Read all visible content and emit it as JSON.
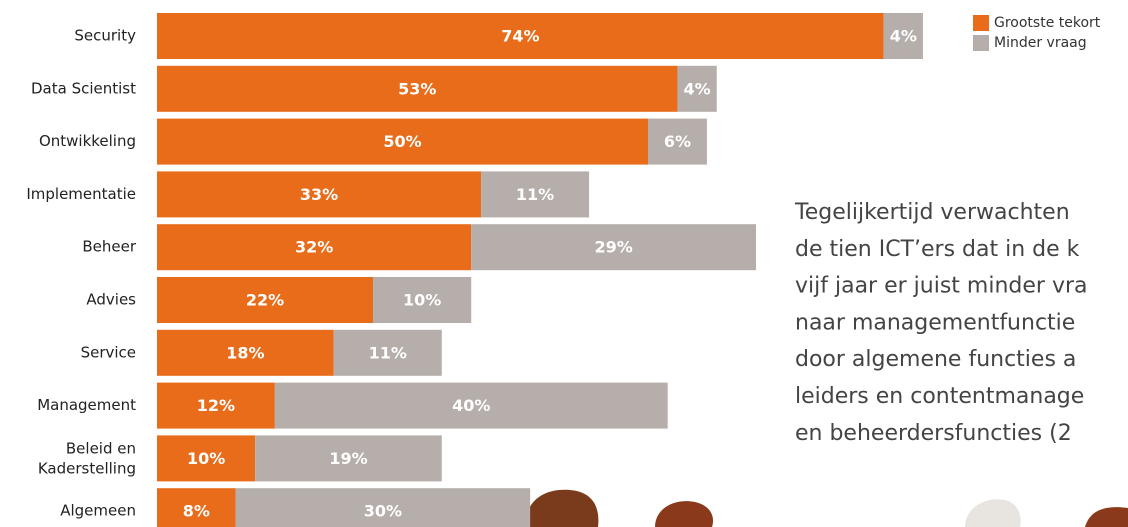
{
  "chart_data": {
    "type": "stacked-bar-horizontal",
    "categories": [
      "Security",
      "Data Scientist",
      "Ontwikkeling",
      "Implementatie",
      "Beheer",
      "Advies",
      "Service",
      "Management",
      "Beleid en\nKaderstelling",
      "Algemeen"
    ],
    "series": [
      {
        "name": "Grootste tekort",
        "color": "#e86c1a",
        "values": [
          74,
          53,
          50,
          33,
          32,
          22,
          18,
          12,
          10,
          8
        ],
        "value_labels": [
          "74%",
          "53%",
          "50%",
          "33%",
          "32%",
          "22%",
          "18%",
          "12%",
          "10%",
          "8%"
        ]
      },
      {
        "name": "Minder vraag",
        "color": "#b6aeaa",
        "values": [
          4,
          4,
          6,
          11,
          29,
          10,
          11,
          40,
          19,
          30
        ],
        "value_labels": [
          "4%",
          "4%",
          "6%",
          "11%",
          "29%",
          "10%",
          "11%",
          "40%",
          "19%",
          "30%"
        ]
      }
    ],
    "xlim": [
      0,
      100
    ],
    "legend": "top-right"
  },
  "text": {
    "lines": [
      "Tegelijkertijd verwachten",
      "de tien ICT’ers dat in de k",
      "vijf jaar er juist minder vra",
      "naar managementfunctie",
      "door algemene functies a",
      "leiders en contentmanage",
      "en beheerdersfuncties (2"
    ]
  }
}
